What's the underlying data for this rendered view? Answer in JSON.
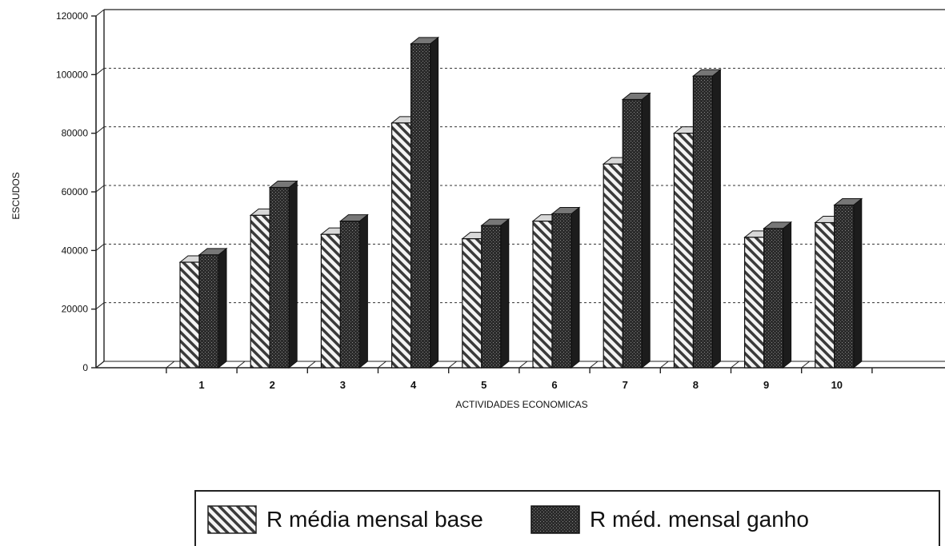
{
  "chart_data": {
    "type": "bar",
    "title": "",
    "xlabel": "ACTIVIDADES ECONOMICAS",
    "ylabel": "ESCUDOS",
    "ylim": [
      0,
      120000
    ],
    "yticks": [
      "0",
      "20000",
      "40000",
      "60000",
      "80000",
      "100000",
      "120000"
    ],
    "grid": true,
    "legend_placement": "bottom",
    "categories": [
      "1",
      "2",
      "3",
      "4",
      "5",
      "6",
      "7",
      "8",
      "9",
      "10"
    ],
    "series": [
      {
        "name": "R média mensal base",
        "pattern": "diagonal-hatch",
        "color": "#9a9a9a",
        "values": [
          36000,
          52000,
          45500,
          83500,
          44000,
          50000,
          69500,
          80000,
          44500,
          49500
        ]
      },
      {
        "name": "R méd. mensal ganho",
        "pattern": "dark-stipple",
        "color": "#2a2a2a",
        "values": [
          38500,
          61500,
          50000,
          110500,
          48500,
          52500,
          91500,
          99500,
          47500,
          55500
        ]
      }
    ]
  },
  "legend": {
    "items": [
      {
        "label": "R média mensal base"
      },
      {
        "label": "R méd. mensal ganho"
      }
    ]
  }
}
